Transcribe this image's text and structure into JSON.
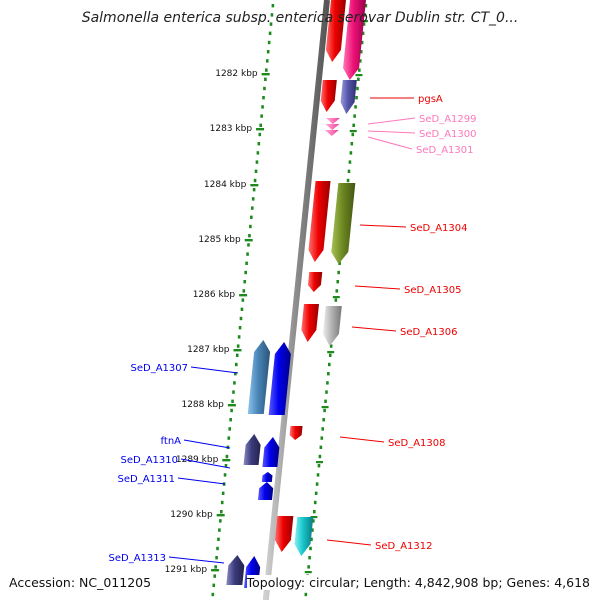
{
  "title": "Salmonella enterica subsp. enterica serovar Dublin str. CT_0...",
  "accession": "Accession: NC_011205",
  "topology": "Topology: circular; Length: 4,842,908 bp; Genes: 4,618",
  "colors": {
    "background": "#ffffff",
    "backbone": "#8c8c8c",
    "tick_dots": "#1e8a1e",
    "kbp_tick": "#1e8a1e",
    "red": "#ee0000",
    "magenta": "#ee1177",
    "purple": "#5555aa",
    "pink": "#ff77bb",
    "olive": "#6f8a22",
    "silver": "#b4b4b4",
    "steel_blue": "#4a86b8",
    "blue": "#0000ee",
    "navy_purple": "#3c3c7e",
    "cyan": "#16c6cc"
  },
  "kbp_labels": [
    "1282 kbp",
    "1283 kbp",
    "1284 kbp",
    "1285 kbp",
    "1286 kbp",
    "1287 kbp",
    "1288 kbp",
    "1289 kbp",
    "1290 kbp",
    "1291 kbp"
  ],
  "genes": [
    {
      "label": "pgsA",
      "color": "red"
    },
    {
      "label": "SeD_A1299",
      "color": "pink"
    },
    {
      "label": "SeD_A1300",
      "color": "pink"
    },
    {
      "label": "SeD_A1301",
      "color": "pink"
    },
    {
      "label": "SeD_A1304",
      "color": "red"
    },
    {
      "label": "SeD_A1305",
      "color": "red"
    },
    {
      "label": "SeD_A1306",
      "color": "red"
    },
    {
      "label": "SeD_A1307",
      "color": "blue"
    },
    {
      "label": "SeD_A1308",
      "color": "red"
    },
    {
      "label": "ftnA",
      "color": "blue"
    },
    {
      "label": "SeD_A1310",
      "color": "blue"
    },
    {
      "label": "SeD_A1311",
      "color": "blue"
    },
    {
      "label": "SeD_A1312",
      "color": "red"
    },
    {
      "label": "SeD_A1313",
      "color": "blue"
    }
  ]
}
